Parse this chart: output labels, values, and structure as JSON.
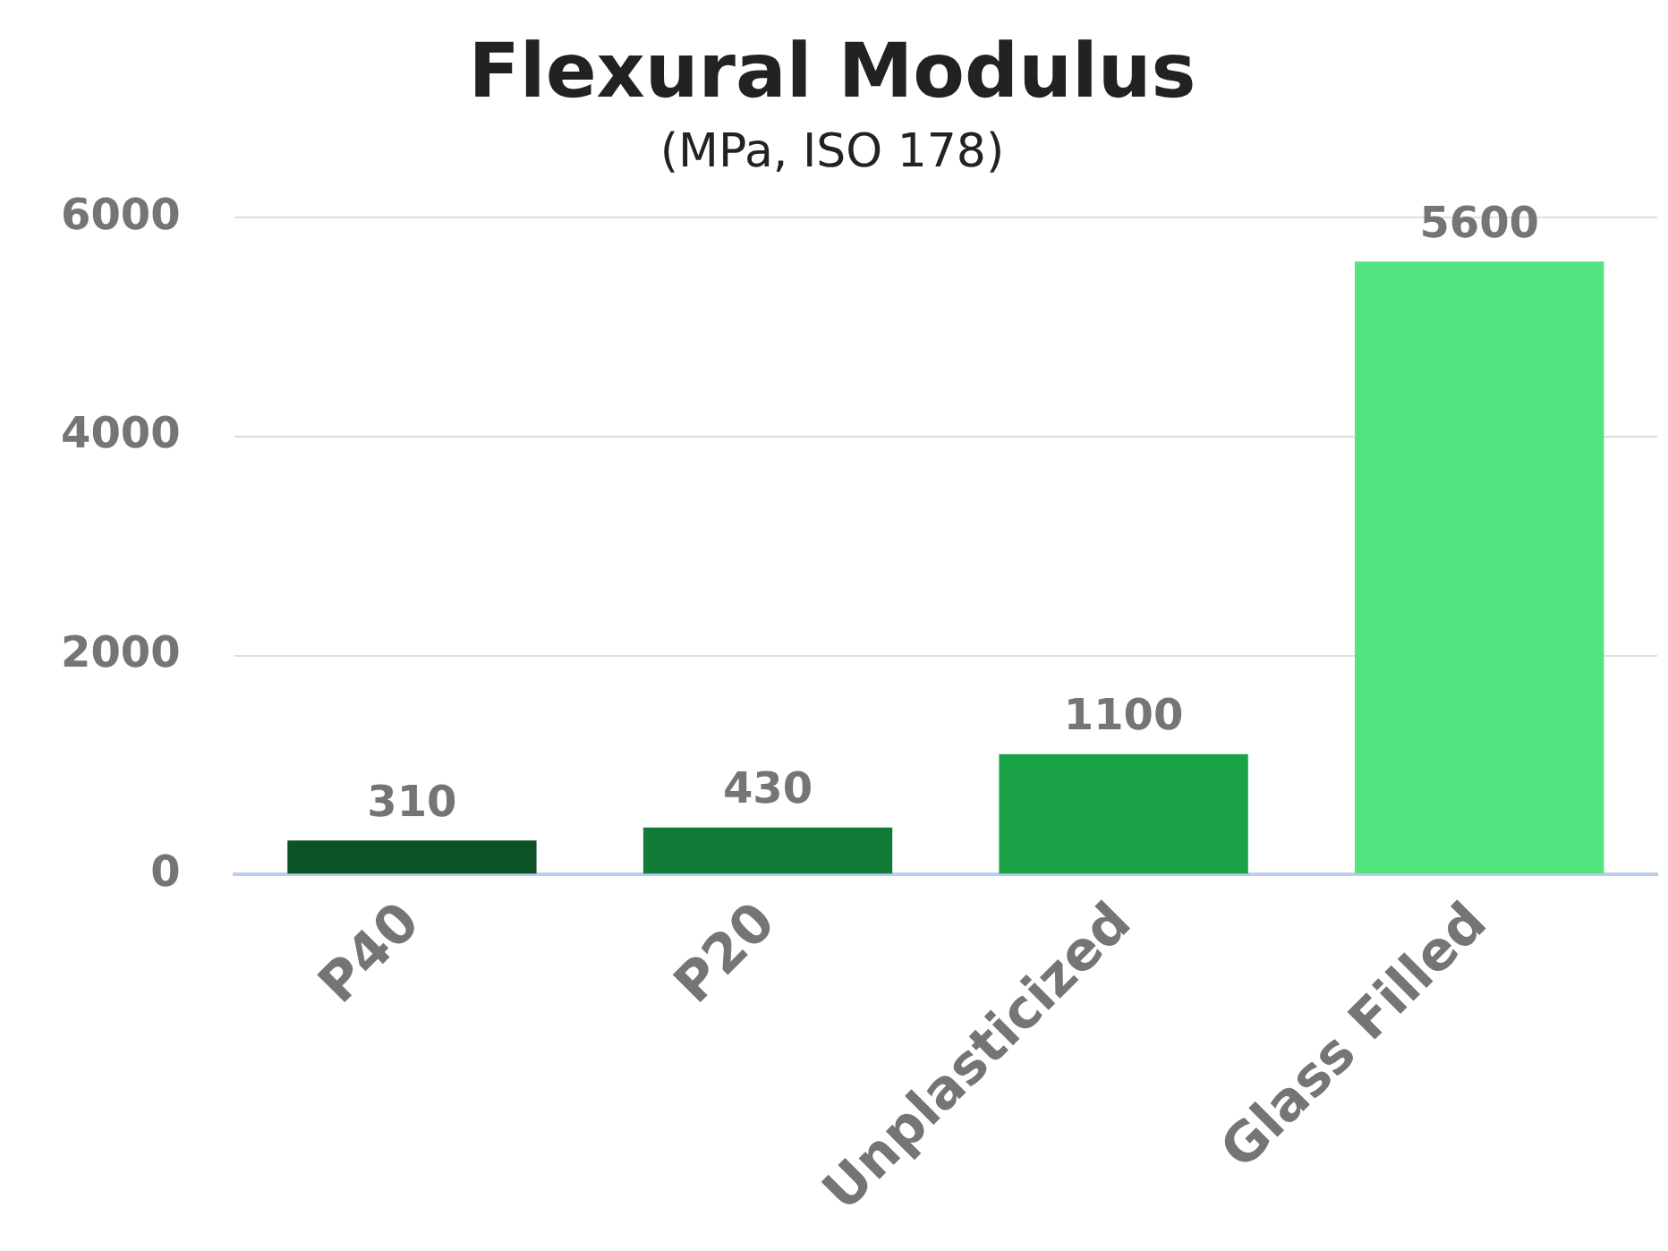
{
  "chart_data": {
    "type": "bar",
    "title": "Flexural Modulus",
    "subtitle": "(MPa, ISO 178)",
    "categories": [
      "P40",
      "P20",
      "Unplasticized",
      "Glass Filled"
    ],
    "values": [
      310,
      430,
      1100,
      5600
    ],
    "colors": [
      "#0b5226",
      "#127b37",
      "#1aa346",
      "#53e47f"
    ],
    "ylim": [
      0,
      6000
    ],
    "yticks": [
      0,
      2000,
      4000,
      6000
    ],
    "grid": "y",
    "data_labels": true
  }
}
